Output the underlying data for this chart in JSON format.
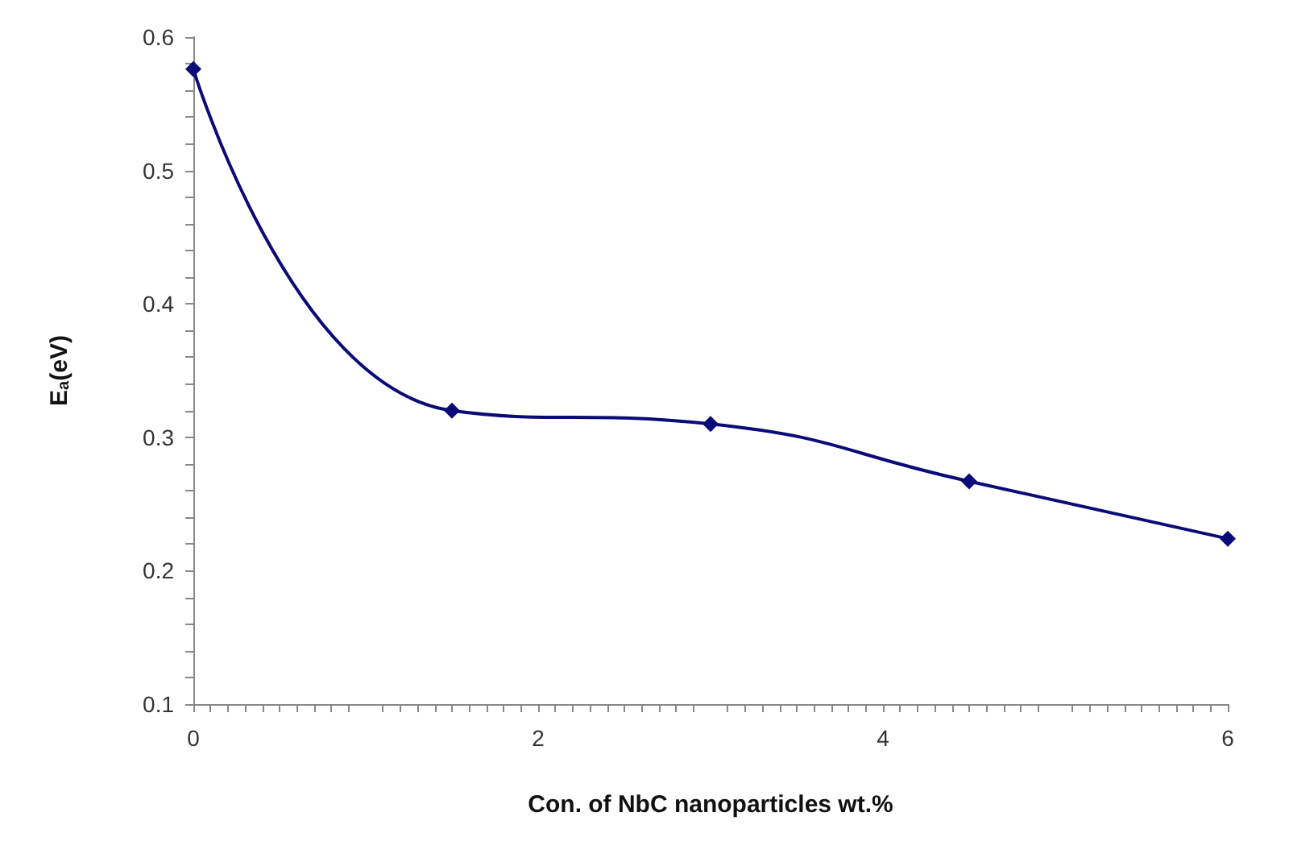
{
  "chart_data": {
    "type": "line",
    "xlabel": "Con. of NbC nanoparticles wt.%",
    "ylabel": "E$_{a}$(eV)",
    "x": [
      0,
      1.5,
      3,
      4.5,
      6
    ],
    "series": [
      {
        "color": "#0a0a78",
        "values": [
          0.576,
          0.32,
          0.31,
          0.267,
          0.224
        ]
      }
    ],
    "xlim": [
      0,
      6
    ],
    "xticks": [
      0,
      2,
      4,
      6
    ],
    "ylim": [
      0.1,
      0.6
    ],
    "yticks": [
      0.1,
      0.2,
      0.3,
      0.4,
      0.5,
      0.6
    ],
    "grid": false,
    "marker": "diamond",
    "line_style": "solid"
  }
}
